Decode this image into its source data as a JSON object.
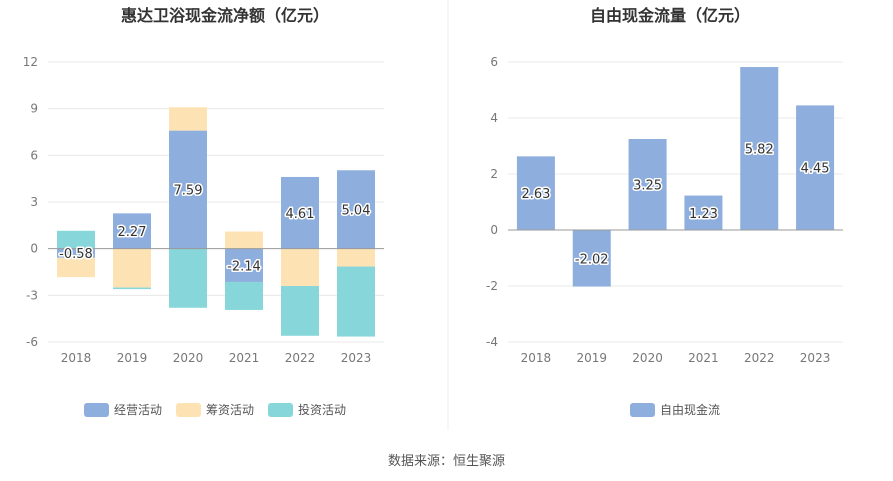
{
  "colors": {
    "operating": "#8eaedd",
    "financing": "#fde2b4",
    "investing": "#87d6d9",
    "fcf": "#8eaedd",
    "axis": "#999999",
    "grid": "#e8e8e8",
    "divider": "#eeeeee",
    "title": "#333333",
    "tick": "#777777"
  },
  "footer": {
    "source": "数据来源：恒生聚源"
  },
  "chart_data": [
    {
      "type": "bar",
      "stacked": true,
      "title": "惠达卫浴现金流净额（亿元）",
      "categories": [
        "2018",
        "2019",
        "2020",
        "2021",
        "2022",
        "2023"
      ],
      "y_ticks": [
        "12",
        "9",
        "6",
        "3",
        "0",
        "-3",
        "-6"
      ],
      "ylim": [
        -6,
        12
      ],
      "grid": true,
      "legend_position": "bottom",
      "series": [
        {
          "name": "经营活动",
          "color_key": "operating",
          "values": [
            -0.58,
            2.27,
            7.59,
            -2.14,
            4.61,
            5.04
          ]
        },
        {
          "name": "筹资活动",
          "color_key": "financing",
          "values": [
            -1.25,
            -2.5,
            1.5,
            1.1,
            -2.4,
            -1.15
          ]
        },
        {
          "name": "投资活动",
          "color_key": "investing",
          "values": [
            1.15,
            -0.1,
            -3.8,
            -1.8,
            -3.2,
            -4.5
          ]
        }
      ],
      "data_labels": [
        "-0.58",
        "2.27",
        "7.59",
        "-2.14",
        "4.61",
        "5.04"
      ]
    },
    {
      "type": "bar",
      "title": "自由现金流量（亿元）",
      "categories": [
        "2018",
        "2019",
        "2020",
        "2021",
        "2022",
        "2023"
      ],
      "y_ticks": [
        "6",
        "4",
        "2",
        "0",
        "-2",
        "-4"
      ],
      "ylim": [
        -4,
        6
      ],
      "grid": true,
      "legend_position": "bottom",
      "series": [
        {
          "name": "自由现金流",
          "color_key": "fcf",
          "values": [
            2.63,
            -2.02,
            3.25,
            1.23,
            5.82,
            4.45
          ]
        }
      ],
      "data_labels": [
        "2.63",
        "-2.02",
        "3.25",
        "1.23",
        "5.82",
        "4.45"
      ]
    }
  ]
}
